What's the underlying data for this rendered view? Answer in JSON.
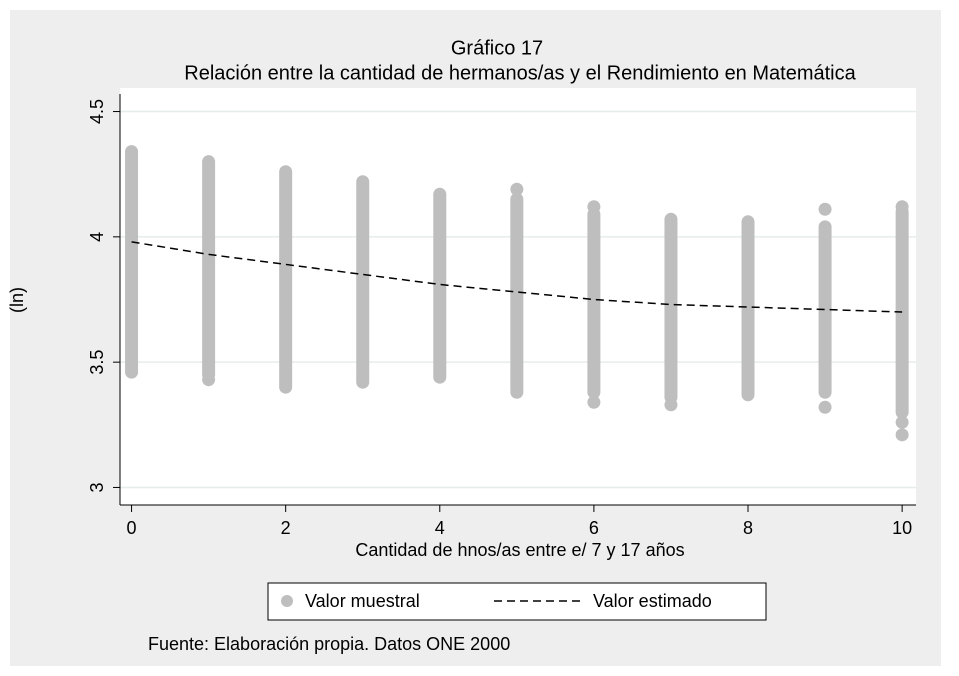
{
  "chart_data": {
    "type": "scatter",
    "title": "Gráfico 17",
    "subtitle": "Relación entre la cantidad de hermanos/as y el Rendimiento en Matemática",
    "x_label": "Cantidad de hnos/as entre e/ 7 y 17 años",
    "y_label": "(ln)",
    "note": "Fuente: Elaboración propia. Datos ONE 2000",
    "xlim": [
      -0.15,
      10.18
    ],
    "ylim": [
      2.93,
      4.57
    ],
    "xticks": [
      0,
      2,
      4,
      6,
      8,
      10
    ],
    "yticks": [
      3,
      3.5,
      4,
      4.5
    ],
    "grid": true,
    "series": [
      {
        "name": "Valor muestral",
        "color": "#bebebe",
        "x": [
          0,
          1,
          2,
          3,
          4,
          5,
          6,
          7,
          8,
          9,
          10
        ],
        "low": [
          3.46,
          3.45,
          3.41,
          3.42,
          3.44,
          3.39,
          3.38,
          3.36,
          3.37,
          3.38,
          3.3
        ],
        "high": [
          4.34,
          4.3,
          4.26,
          4.22,
          4.17,
          4.15,
          4.09,
          4.07,
          4.06,
          4.04,
          4.1
        ],
        "outlier_x": [
          1,
          2,
          5,
          5,
          6,
          6,
          7,
          9,
          9,
          10,
          10,
          10
        ],
        "outlier_y": [
          3.43,
          3.4,
          4.19,
          3.38,
          4.12,
          3.34,
          3.33,
          4.11,
          3.32,
          4.12,
          3.26,
          3.21
        ]
      },
      {
        "name": "Valor estimado",
        "color": "#000000",
        "dashed": true,
        "x": [
          0,
          1,
          2,
          3,
          4,
          5,
          6,
          7,
          8,
          9,
          10
        ],
        "values": [
          3.98,
          3.93,
          3.89,
          3.85,
          3.81,
          3.78,
          3.75,
          3.73,
          3.72,
          3.71,
          3.7
        ]
      }
    ]
  }
}
